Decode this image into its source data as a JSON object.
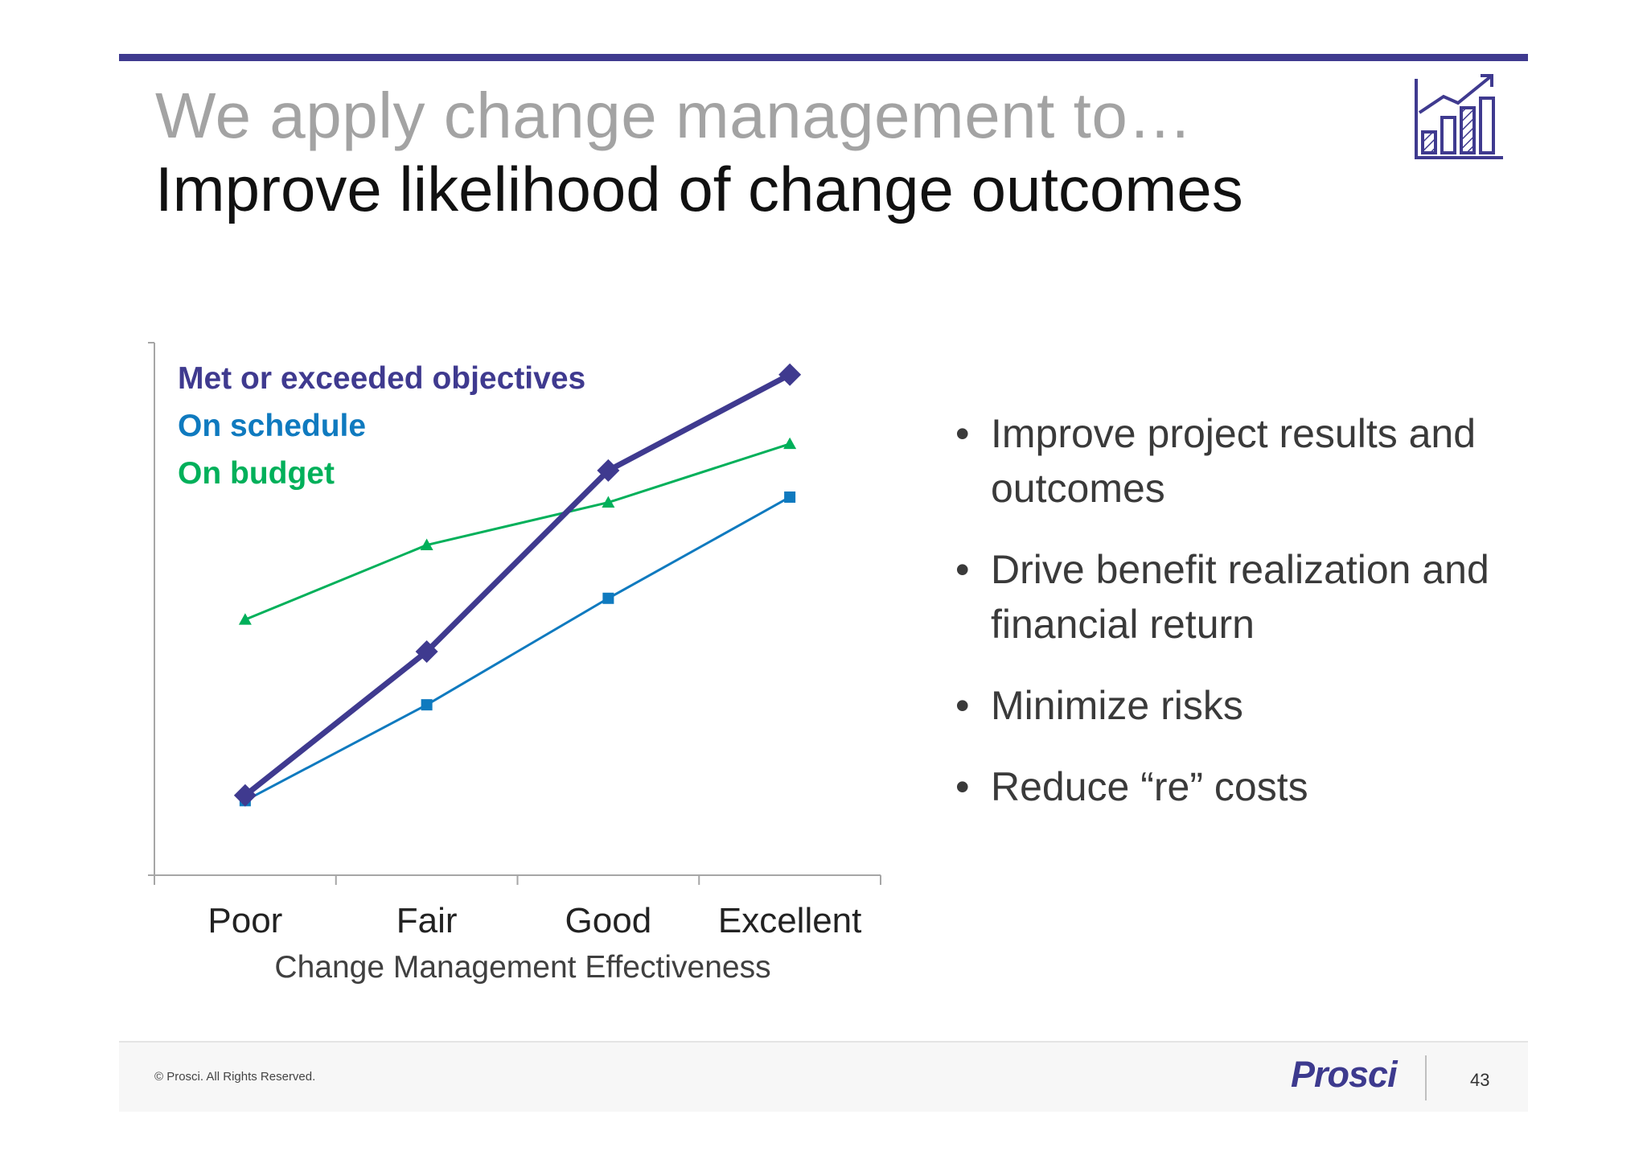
{
  "slide": {
    "kicker": "We apply change management to…",
    "title": "Improve likelihood of change outcomes",
    "icon": "growth-chart-icon"
  },
  "chart_data": {
    "type": "line",
    "categories": [
      "Poor",
      "Fair",
      "Good",
      "Excellent"
    ],
    "xlabel": "Change Management Effectiveness",
    "ylabel": "",
    "ylim": [
      0,
      100
    ],
    "grid": false,
    "legend_placement": "top-left",
    "series": [
      {
        "name": "Met or exceeded objectives",
        "color": "#3f3a8f",
        "marker": "diamond",
        "values": [
          15,
          42,
          76,
          94
        ]
      },
      {
        "name": "On schedule",
        "color": "#0f7abf",
        "marker": "square",
        "values": [
          14,
          32,
          52,
          71
        ]
      },
      {
        "name": "On budget",
        "color": "#00b05a",
        "marker": "triangle",
        "values": [
          48,
          62,
          70,
          81
        ]
      }
    ]
  },
  "bullets": [
    "Improve project results and outcomes",
    "Drive benefit realization and financial return",
    "Minimize risks",
    "Reduce “re” costs"
  ],
  "footer": {
    "copyright": "© Prosci. All Rights Reserved.",
    "brand": "Prosci",
    "page_number": "43"
  },
  "colors": {
    "accent": "#3f3a8f",
    "kicker": "#a3a3a3"
  }
}
